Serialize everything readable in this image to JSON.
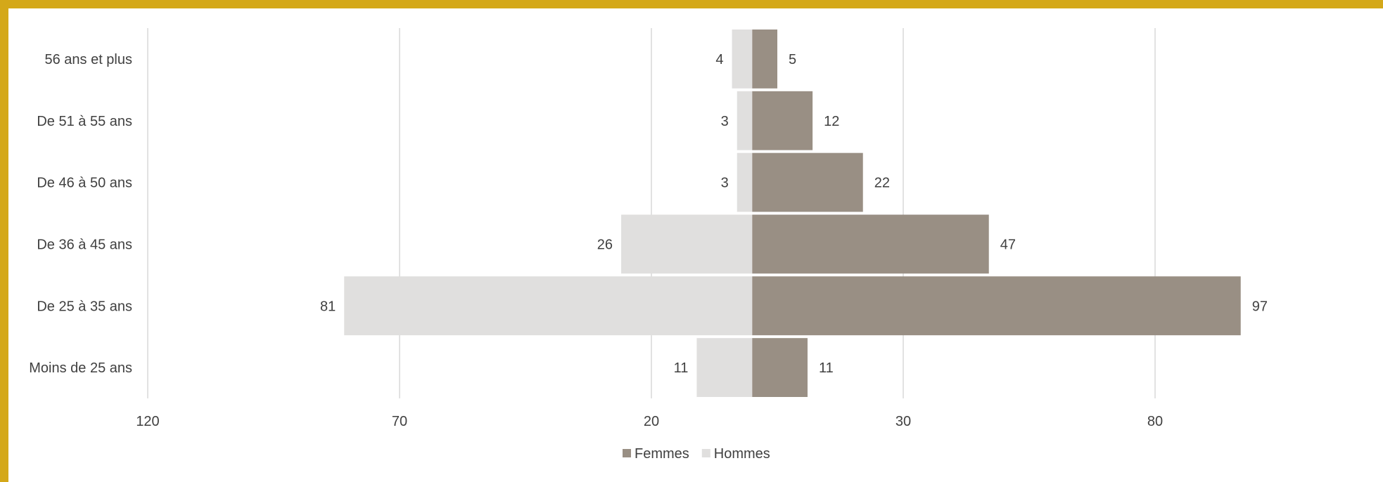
{
  "chart_data": {
    "type": "bar",
    "orientation": "horizontal",
    "style": "population-pyramid",
    "categories": [
      "Moins de 25 ans",
      "De 25 à 35 ans",
      "De 36 à 45 ans",
      "De 46 à 50 ans",
      "De 51 à 55 ans",
      "56 ans et plus"
    ],
    "series": [
      {
        "name": "Femmes",
        "values": [
          11,
          97,
          47,
          22,
          12,
          5
        ],
        "color": "#998f84",
        "side": "right"
      },
      {
        "name": "Hommes",
        "values": [
          11,
          81,
          26,
          3,
          3,
          4
        ],
        "color": "#e0dfde",
        "side": "left"
      }
    ],
    "x_ticks": [
      -120,
      -70,
      -20,
      30,
      80
    ],
    "x_tick_labels": [
      "120",
      "70",
      "20",
      "30",
      "80"
    ],
    "xlim": [
      -120,
      80
    ],
    "grid": true,
    "legend_position": "bottom",
    "data_labels": true,
    "colors": {
      "border": "#d4a819",
      "grid": "#d9d9d9",
      "text": "#404040"
    }
  }
}
